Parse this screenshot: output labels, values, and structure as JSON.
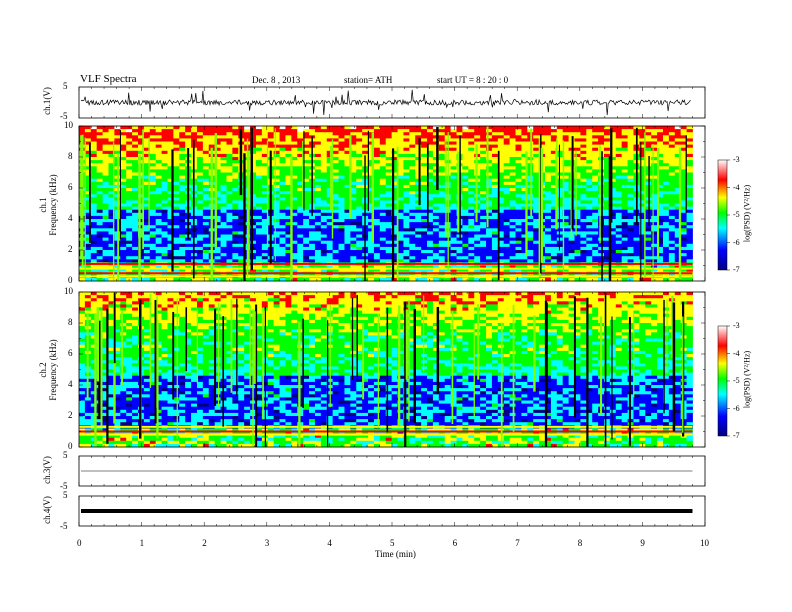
{
  "header": {
    "title": "VLF  Spectra",
    "date": "Dec. 8 , 2013",
    "station": "station= ATH",
    "start": "start  UT  =    8  : 20 : 0"
  },
  "colors": {
    "background": "#ffffff",
    "axis": "#000000",
    "colormap": [
      "#000080",
      "#0000ff",
      "#00ffff",
      "#00ff00",
      "#ffff00",
      "#ff0000",
      "#ffffff"
    ]
  },
  "chart_data": [
    {
      "id": "ch1_waveform",
      "type": "line",
      "ylabel": "ch.1(V)",
      "ylim": [
        -5,
        5
      ],
      "yticks": [
        "5",
        "-5"
      ],
      "xlim": [
        0,
        10
      ],
      "baseline_value": 0,
      "series": [
        {
          "values": []
        }
      ]
    },
    {
      "id": "ch1_spectrogram",
      "type": "heatmap",
      "ylabel": "ch.1\nFrequency (kHz)",
      "ylabel_top": "ch.1",
      "ylabel_bottom": "Frequency  (kHz)",
      "ylim": [
        0,
        10
      ],
      "yticks": [
        "0",
        "2",
        "4",
        "6",
        "8",
        "10"
      ],
      "xlim": [
        0,
        9.8
      ],
      "colorbar": {
        "label": "log(PSD) (V²/Hz)",
        "range": [
          -7,
          -3
        ],
        "ticks": [
          "-3",
          "-4",
          "-5",
          "-6",
          "-7"
        ]
      }
    },
    {
      "id": "ch2_spectrogram",
      "type": "heatmap",
      "ylabel_top": "ch.2",
      "ylabel_bottom": "Frequency  (kHz)",
      "ylim": [
        0,
        10
      ],
      "yticks": [
        "0",
        "2",
        "4",
        "6",
        "8",
        "10"
      ],
      "xlim": [
        0,
        9.8
      ],
      "colorbar": {
        "label": "log(PSD) (V²/Hz)",
        "range": [
          -7,
          -3
        ],
        "ticks": [
          "-3",
          "-4",
          "-5",
          "-6",
          "-7"
        ]
      }
    },
    {
      "id": "ch3_waveform",
      "type": "line",
      "ylabel": "ch.3(V)",
      "ylim": [
        -5,
        5
      ],
      "yticks": [
        "5",
        "-5"
      ],
      "series": [
        {
          "values": [
            0,
            0
          ]
        }
      ]
    },
    {
      "id": "ch4_waveform",
      "type": "line",
      "ylabel": "ch.4(V)",
      "ylim": [
        -5,
        5
      ],
      "yticks": [
        "5",
        "-5"
      ],
      "series": [
        {
          "values": [
            0,
            0
          ]
        }
      ]
    }
  ],
  "xaxis": {
    "label": "Time  (min)",
    "ticks": [
      "0",
      "1",
      "2",
      "3",
      "4",
      "5",
      "6",
      "7",
      "8",
      "9",
      "10"
    ],
    "range": [
      0,
      10
    ]
  }
}
